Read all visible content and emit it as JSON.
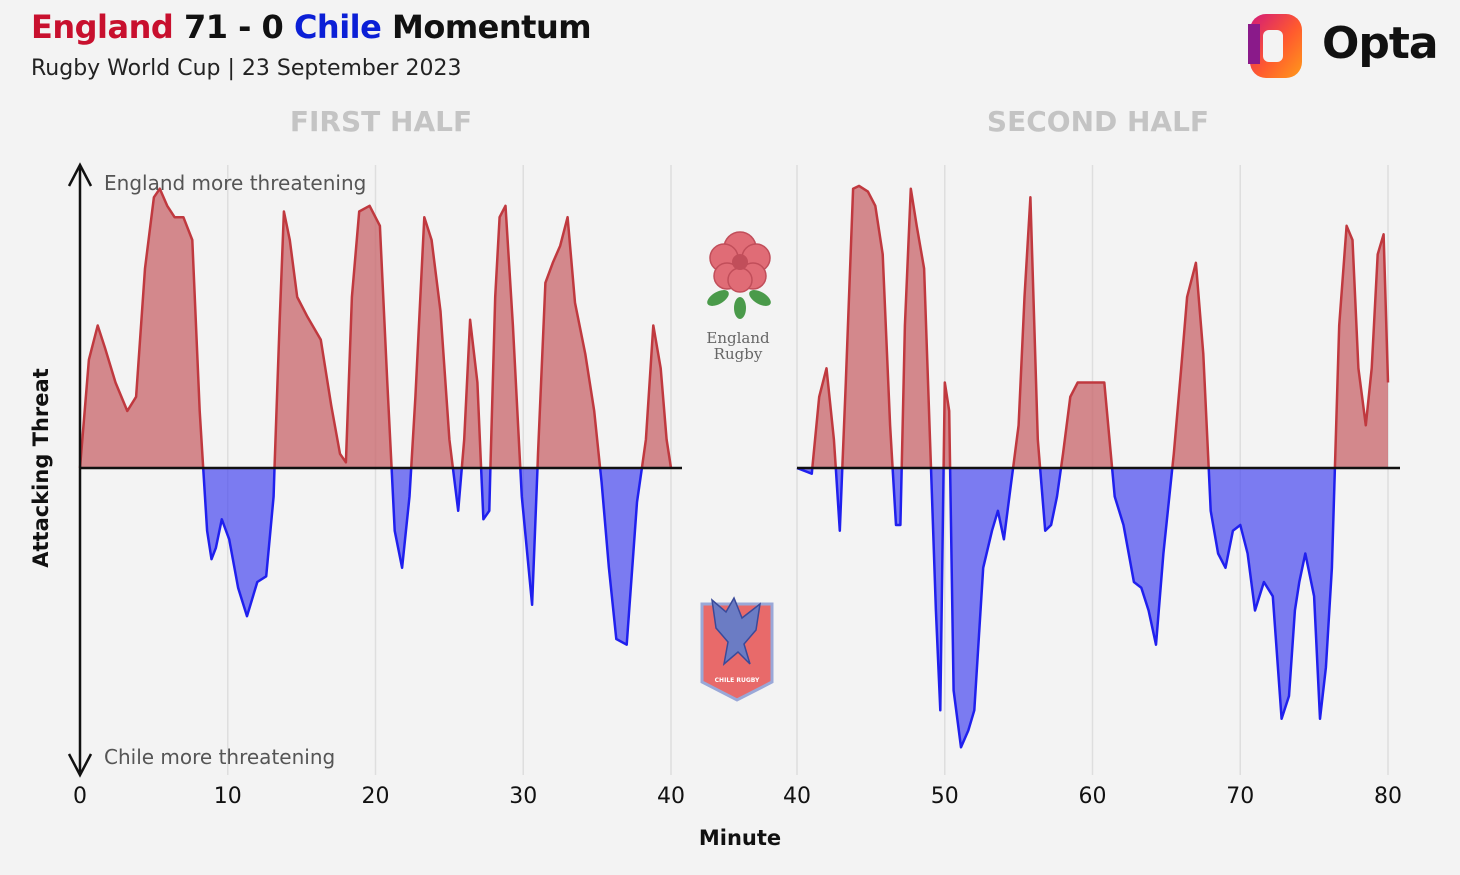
{
  "header": {
    "home_team": "England",
    "score": "71 - 0",
    "away_team": "Chile",
    "title_suffix": "Momentum",
    "subtitle": "Rugby World Cup | 23 September 2023",
    "brand": "Opta"
  },
  "chart_data": {
    "type": "area",
    "panel_titles": [
      "FIRST HALF",
      "SECOND HALF"
    ],
    "xlabel": "Minute",
    "ylabel": "Attacking Threat",
    "top_annotation": "England more threatening",
    "bottom_annotation": "Chile more threatening",
    "team_badges": {
      "top": [
        "England",
        "Rugby"
      ],
      "bottom": "CHILE RUGBY"
    },
    "ylim": [
      -1,
      1
    ],
    "grid": "vertical",
    "colors": {
      "england": "#c8646a",
      "chile": "#3a3af0"
    },
    "halves": [
      {
        "xlim": [
          0,
          40
        ],
        "ticks": [
          0,
          10,
          20,
          30,
          40
        ],
        "x": [
          0,
          0.6,
          1.2,
          1.7,
          2.4,
          3.2,
          3.8,
          4.4,
          5.0,
          5.4,
          5.9,
          6.4,
          7.0,
          7.6,
          8.1,
          8.6,
          8.9,
          9.2,
          9.6,
          10.1,
          10.7,
          11.3,
          12.0,
          12.6,
          13.1,
          13.5,
          13.8,
          14.2,
          14.7,
          15.4,
          16.3,
          17.0,
          17.6,
          18.0,
          18.4,
          18.9,
          19.6,
          20.3,
          20.8,
          21.3,
          21.8,
          22.3,
          22.7,
          23.3,
          23.8,
          24.4,
          25.0,
          25.6,
          26.0,
          26.4,
          26.9,
          27.3,
          27.7,
          28.1,
          28.4,
          28.8,
          29.3,
          29.9,
          30.6,
          31.0,
          31.5,
          32.0,
          32.5,
          33.0,
          33.5,
          34.2,
          34.8,
          35.3,
          35.8,
          36.3,
          37.0,
          37.7,
          38.3,
          38.8,
          39.3,
          39.7,
          40.0
        ],
        "values": [
          0,
          0.38,
          0.5,
          0.42,
          0.3,
          0.2,
          0.25,
          0.7,
          0.95,
          0.98,
          0.92,
          0.88,
          0.88,
          0.8,
          0.2,
          -0.22,
          -0.32,
          -0.28,
          -0.18,
          -0.25,
          -0.42,
          -0.52,
          -0.4,
          -0.38,
          -0.1,
          0.5,
          0.9,
          0.8,
          0.6,
          0.53,
          0.45,
          0.22,
          0.05,
          0.02,
          0.6,
          0.9,
          0.92,
          0.85,
          0.3,
          -0.22,
          -0.35,
          -0.1,
          0.25,
          0.88,
          0.8,
          0.55,
          0.1,
          -0.15,
          0.1,
          0.52,
          0.3,
          -0.18,
          -0.15,
          0.6,
          0.88,
          0.92,
          0.5,
          -0.1,
          -0.48,
          0.05,
          0.65,
          0.72,
          0.78,
          0.88,
          0.58,
          0.4,
          0.2,
          -0.05,
          -0.35,
          -0.6,
          -0.62,
          -0.12,
          0.1,
          0.5,
          0.35,
          0.1,
          0
        ]
      },
      {
        "xlim": [
          40,
          80
        ],
        "ticks": [
          40,
          50,
          60,
          70,
          80
        ],
        "x": [
          40.0,
          41.0,
          41.5,
          42.0,
          42.5,
          42.9,
          43.3,
          43.8,
          44.2,
          44.8,
          45.3,
          45.8,
          46.3,
          46.7,
          47.0,
          47.3,
          47.7,
          48.1,
          48.6,
          49.0,
          49.4,
          49.7,
          50.0,
          50.3,
          50.6,
          51.1,
          51.6,
          52.0,
          52.6,
          53.2,
          53.6,
          54.0,
          54.5,
          55.0,
          55.4,
          55.8,
          56.3,
          56.8,
          57.2,
          57.6,
          58.0,
          58.5,
          59.0,
          59.5,
          60.0,
          60.4,
          60.8,
          61.5,
          62.1,
          62.8,
          63.3,
          63.8,
          64.3,
          64.8,
          65.5,
          66.0,
          66.4,
          67.0,
          67.5,
          68.0,
          68.5,
          69.0,
          69.5,
          70.0,
          70.5,
          71.0,
          71.6,
          72.2,
          72.8,
          73.3,
          73.7,
          74.0,
          74.4,
          75.0,
          75.4,
          75.8,
          76.2,
          76.7,
          77.2,
          77.6,
          78.0,
          78.5,
          78.9,
          79.3,
          79.7,
          80.0
        ],
        "values": [
          0,
          -0.02,
          0.25,
          0.35,
          0.1,
          -0.22,
          0.3,
          0.98,
          0.99,
          0.97,
          0.92,
          0.75,
          0.15,
          -0.2,
          -0.2,
          0.5,
          0.98,
          0.85,
          0.7,
          0.1,
          -0.5,
          -0.85,
          0.3,
          0.2,
          -0.78,
          -0.98,
          -0.92,
          -0.85,
          -0.35,
          -0.22,
          -0.15,
          -0.25,
          -0.05,
          0.15,
          0.6,
          0.95,
          0.1,
          -0.22,
          -0.2,
          -0.1,
          0.05,
          0.25,
          0.3,
          0.3,
          0.3,
          0.3,
          0.3,
          -0.1,
          -0.2,
          -0.4,
          -0.42,
          -0.5,
          -0.62,
          -0.3,
          0.05,
          0.35,
          0.6,
          0.72,
          0.4,
          -0.15,
          -0.3,
          -0.35,
          -0.22,
          -0.2,
          -0.3,
          -0.5,
          -0.4,
          -0.45,
          -0.88,
          -0.8,
          -0.5,
          -0.4,
          -0.3,
          -0.45,
          -0.88,
          -0.7,
          -0.35,
          0.5,
          0.85,
          0.8,
          0.35,
          0.15,
          0.35,
          0.75,
          0.82,
          0.3
        ]
      }
    ]
  }
}
